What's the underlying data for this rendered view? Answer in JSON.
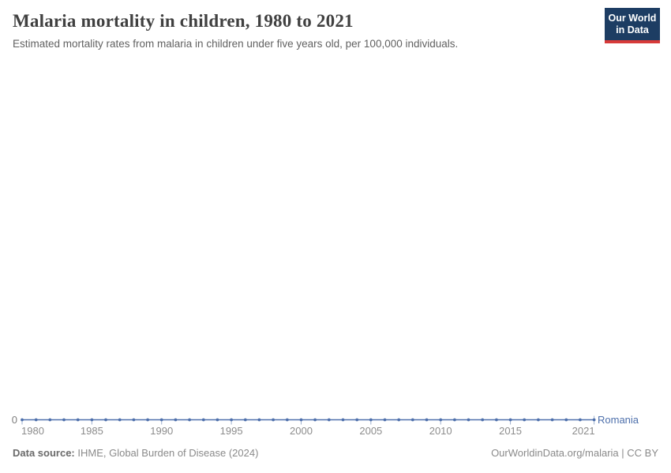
{
  "logo": {
    "line1": "Our World",
    "line2": "in Data"
  },
  "chart_data": {
    "type": "line",
    "title": "Malaria mortality in children, 1980 to 2021",
    "subtitle": "Estimated mortality rates from malaria in children under five years old, per 100,000 individuals.",
    "xlabel": "",
    "ylabel": "",
    "xlim": [
      1980,
      2021
    ],
    "ylim": [
      0,
      0
    ],
    "grid": false,
    "legend_position": "end-of-line",
    "x_ticks": [
      1980,
      1985,
      1990,
      1995,
      2000,
      2005,
      2010,
      2015,
      2021
    ],
    "x_tick_labels": [
      "1980",
      "1985",
      "1990",
      "1995",
      "2000",
      "2005",
      "2010",
      "2015",
      "2021"
    ],
    "y_axis": {
      "zero_label": "0"
    },
    "series": [
      {
        "name": "Romania",
        "color": "#4d6fab",
        "x": [
          1980,
          1981,
          1982,
          1983,
          1984,
          1985,
          1986,
          1987,
          1988,
          1989,
          1990,
          1991,
          1992,
          1993,
          1994,
          1995,
          1996,
          1997,
          1998,
          1999,
          2000,
          2001,
          2002,
          2003,
          2004,
          2005,
          2006,
          2007,
          2008,
          2009,
          2010,
          2011,
          2012,
          2013,
          2014,
          2015,
          2016,
          2017,
          2018,
          2019,
          2020,
          2021
        ],
        "values": [
          0,
          0,
          0,
          0,
          0,
          0,
          0,
          0,
          0,
          0,
          0,
          0,
          0,
          0,
          0,
          0,
          0,
          0,
          0,
          0,
          0,
          0,
          0,
          0,
          0,
          0,
          0,
          0,
          0,
          0,
          0,
          0,
          0,
          0,
          0,
          0,
          0,
          0,
          0,
          0,
          0,
          0
        ]
      }
    ]
  },
  "footer": {
    "data_source_label": "Data source:",
    "data_source_value": "IHME, Global Burden of Disease (2024)",
    "attribution": "OurWorldinData.org/malaria | CC BY"
  },
  "colors": {
    "series": "#4d6fab",
    "logo_bg": "#1d3d63",
    "logo_bar": "#d73a39",
    "title": "#404040",
    "subtitle": "#616161",
    "tick_label": "#8c8c8c",
    "tick_mark": "#9db0cf",
    "footer_text": "#8a8a8a"
  }
}
